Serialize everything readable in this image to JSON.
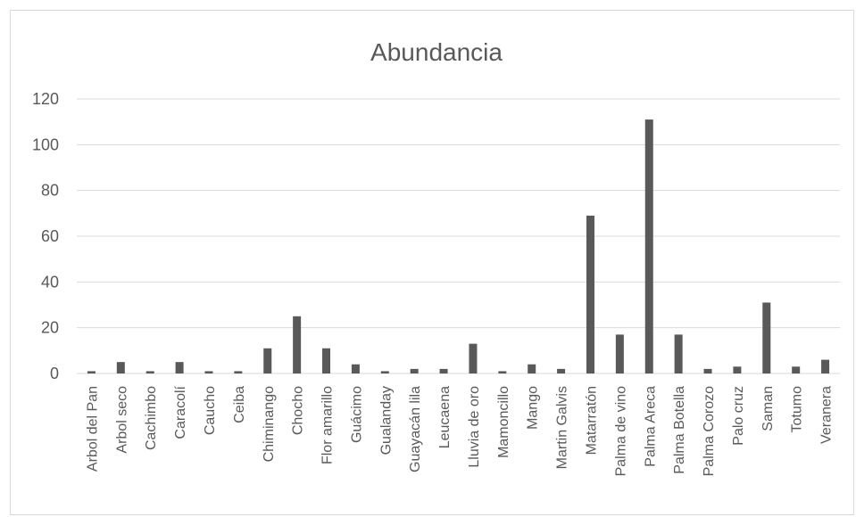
{
  "chart_data": {
    "type": "bar",
    "title": "Abundancia",
    "xlabel": "",
    "ylabel": "",
    "categories": [
      "Arbol del Pan",
      "Arbol seco",
      "Cachimbo",
      "Caracolí",
      "Caucho",
      "Ceiba",
      "Chiminango",
      "Chocho",
      "Flor amarillo",
      "Guácimo",
      "Gualanday",
      "Guayacán lila",
      "Leucaena",
      "Lluvia de oro",
      "Mamoncillo",
      "Mango",
      "Martin Galvis",
      "Matarratón",
      "Palma de vino",
      "Palma Areca",
      "Palma Botella",
      "Palma Corozo",
      "Palo cruz",
      "Saman",
      "Totumo",
      "Veranera"
    ],
    "values": [
      1,
      5,
      1,
      5,
      1,
      1,
      11,
      25,
      11,
      4,
      1,
      2,
      2,
      13,
      1,
      4,
      2,
      69,
      17,
      111,
      17,
      2,
      3,
      31,
      3,
      6
    ],
    "ylim": [
      0,
      120
    ],
    "yticks": [
      0,
      20,
      40,
      60,
      80,
      100,
      120
    ],
    "grid": true,
    "legend": "none",
    "colors": {
      "bar": "#595959",
      "grid": "#d9d9d9",
      "text": "#595959"
    }
  }
}
